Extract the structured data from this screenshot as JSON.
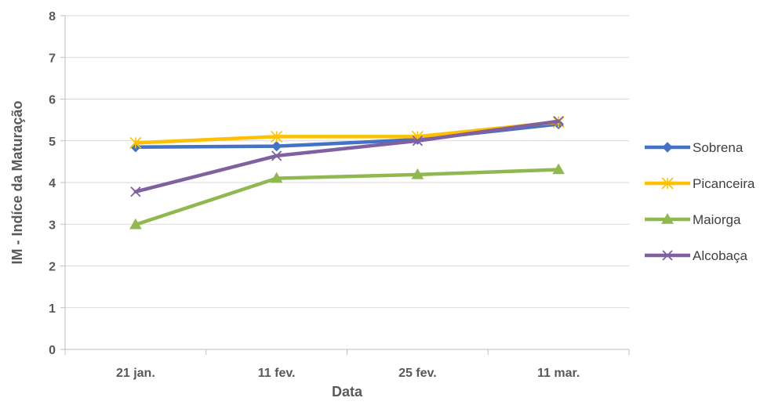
{
  "chart_data": {
    "type": "line",
    "title": "",
    "xlabel": "Data",
    "ylabel": "IM - Indíce da Maturação",
    "categories": [
      "21 jan.",
      "11 fev.",
      "25 fev.",
      "11 mar."
    ],
    "ylim": [
      0,
      8
    ],
    "yticks": [
      0,
      1,
      2,
      3,
      4,
      5,
      6,
      7,
      8
    ],
    "grid": true,
    "legend_position": "right",
    "series": [
      {
        "name": "Sobrena",
        "values": [
          4.85,
          4.87,
          5.03,
          5.4
        ],
        "color": "#4472c4",
        "marker": "diamond"
      },
      {
        "name": "Picanceira",
        "values": [
          4.95,
          5.1,
          5.1,
          5.45
        ],
        "color": "#ffc000",
        "marker": "asterisk"
      },
      {
        "name": "Maiorga",
        "values": [
          2.99,
          4.1,
          4.19,
          4.31
        ],
        "color": "#8fb950",
        "marker": "triangle"
      },
      {
        "name": "Alcobaça",
        "values": [
          3.78,
          4.64,
          5.0,
          5.47
        ],
        "color": "#7f60a0",
        "marker": "x"
      }
    ]
  }
}
